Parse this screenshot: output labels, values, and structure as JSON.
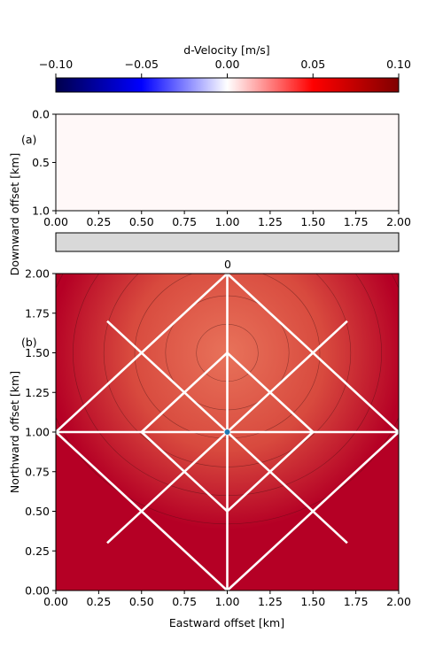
{
  "chart_data": [
    {
      "type": "heatmap",
      "title": "",
      "xlabel": "",
      "ylabel": "",
      "colorbar": {
        "label": "d-Velocity [m/s]",
        "range": [
          -0.1,
          0.1
        ],
        "ticks": [
          "−0.10",
          "−0.05",
          "0.00",
          "0.05",
          "0.10"
        ],
        "colormap": "seismic",
        "colors": [
          "#00004c",
          "#0000ff",
          "#ffffff",
          "#ff0000",
          "#800000"
        ]
      }
    },
    {
      "type": "heatmap",
      "panel_label": "(a)",
      "xlabel": "",
      "ylabel": "Downward offset [km]",
      "xlim": [
        0.0,
        2.0
      ],
      "ylim": [
        1.0,
        0.0
      ],
      "xticks": [
        "0.00",
        "0.25",
        "0.50",
        "0.75",
        "1.00",
        "1.25",
        "1.50",
        "1.75",
        "2.00"
      ],
      "yticks": [
        "0.0",
        "0.5",
        "1.0"
      ],
      "fill_color": "#fff8f8",
      "value": 0.0
    },
    {
      "type": "bar",
      "label": "0",
      "fill_color": "#d9d9d9"
    },
    {
      "type": "heatmap",
      "panel_label": "(b)",
      "xlabel": "Eastward offset [km]",
      "ylabel": "Northward offset [km]",
      "xlim": [
        0.0,
        2.0
      ],
      "ylim": [
        0.0,
        2.0
      ],
      "xticks": [
        "0.00",
        "0.25",
        "0.50",
        "0.75",
        "1.00",
        "1.25",
        "1.50",
        "1.75",
        "2.00"
      ],
      "yticks": [
        "0.00",
        "0.25",
        "0.50",
        "0.75",
        "1.00",
        "1.25",
        "1.50",
        "1.75",
        "2.00"
      ],
      "anomaly_center": [
        1.0,
        1.5
      ],
      "contour_radii": [
        0.25,
        0.5,
        0.75,
        1.0,
        1.25,
        1.5
      ],
      "inner_color": "#e8725a",
      "outer_color": "#b50025",
      "paths": [
        [
          [
            0.0,
            1.0
          ],
          [
            1.0,
            2.0
          ],
          [
            2.0,
            1.0
          ],
          [
            1.0,
            0.0
          ],
          [
            0.0,
            1.0
          ]
        ],
        [
          [
            0.5,
            1.0
          ],
          [
            1.0,
            1.5
          ],
          [
            1.5,
            1.0
          ],
          [
            1.0,
            0.5
          ],
          [
            0.5,
            1.0
          ]
        ],
        [
          [
            0.0,
            1.0
          ],
          [
            2.0,
            1.0
          ]
        ],
        [
          [
            1.0,
            0.0
          ],
          [
            1.0,
            2.0
          ]
        ],
        [
          [
            0.3,
            0.3
          ],
          [
            1.7,
            1.7
          ]
        ],
        [
          [
            0.3,
            1.7
          ],
          [
            1.7,
            0.3
          ]
        ]
      ],
      "path_color": "#ffffff",
      "source_point": [
        1.0,
        1.0
      ],
      "source_color": "#1f77b4"
    }
  ]
}
